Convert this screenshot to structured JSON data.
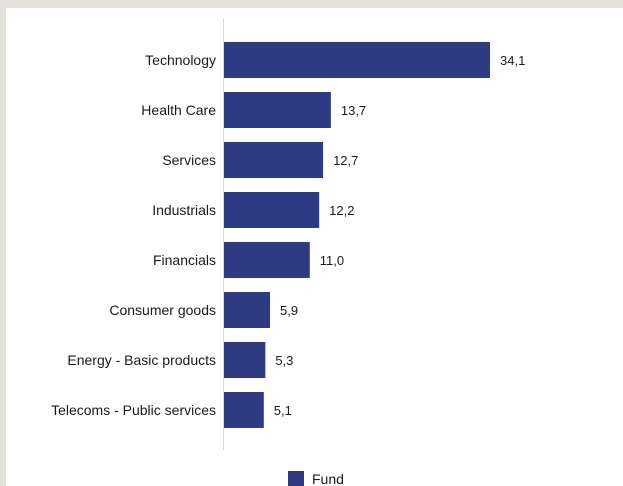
{
  "chart_data": {
    "type": "bar",
    "orientation": "horizontal",
    "categories": [
      "Technology",
      "Health Care",
      "Services",
      "Industrials",
      "Financials",
      "Consumer goods",
      "Energy - Basic products",
      "Telecoms - Public services"
    ],
    "series": [
      {
        "name": "Fund",
        "values": [
          34.1,
          13.7,
          12.7,
          12.2,
          11.0,
          5.9,
          5.3,
          5.1
        ],
        "value_labels": [
          "34,1",
          "13,7",
          "12,7",
          "12,2",
          "11,0",
          "5,9",
          "5,3",
          "5,1"
        ],
        "color": "#2e3a82"
      }
    ],
    "xlim": [
      0,
      35
    ],
    "grid": false,
    "legend": "bottom-center"
  }
}
